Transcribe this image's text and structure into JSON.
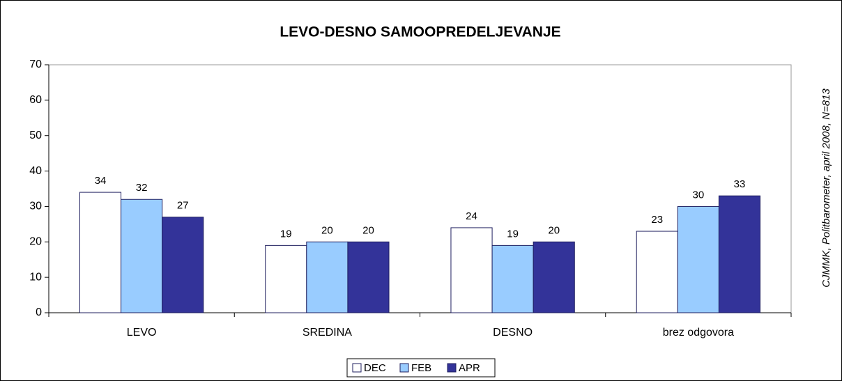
{
  "chart_data": {
    "type": "bar",
    "title": "LEVO-DESNO SAMOOPREDELJEVANJE",
    "source": "CJMMK, Politbarometer, april 2008, N=813",
    "categories": [
      "LEVO",
      "SREDINA",
      "DESNO",
      "brez odgovora"
    ],
    "series": [
      {
        "name": "DEC",
        "color": "#ffffff",
        "values": [
          34,
          19,
          24,
          23
        ]
      },
      {
        "name": "FEB",
        "color": "#99ccff",
        "values": [
          32,
          20,
          19,
          30
        ]
      },
      {
        "name": "APR",
        "color": "#333399",
        "values": [
          27,
          20,
          20,
          33
        ]
      }
    ],
    "ylim": [
      0,
      70
    ],
    "yticks": [
      0,
      10,
      20,
      30,
      40,
      50,
      60,
      70
    ],
    "grid": false,
    "legend": "bottom"
  }
}
